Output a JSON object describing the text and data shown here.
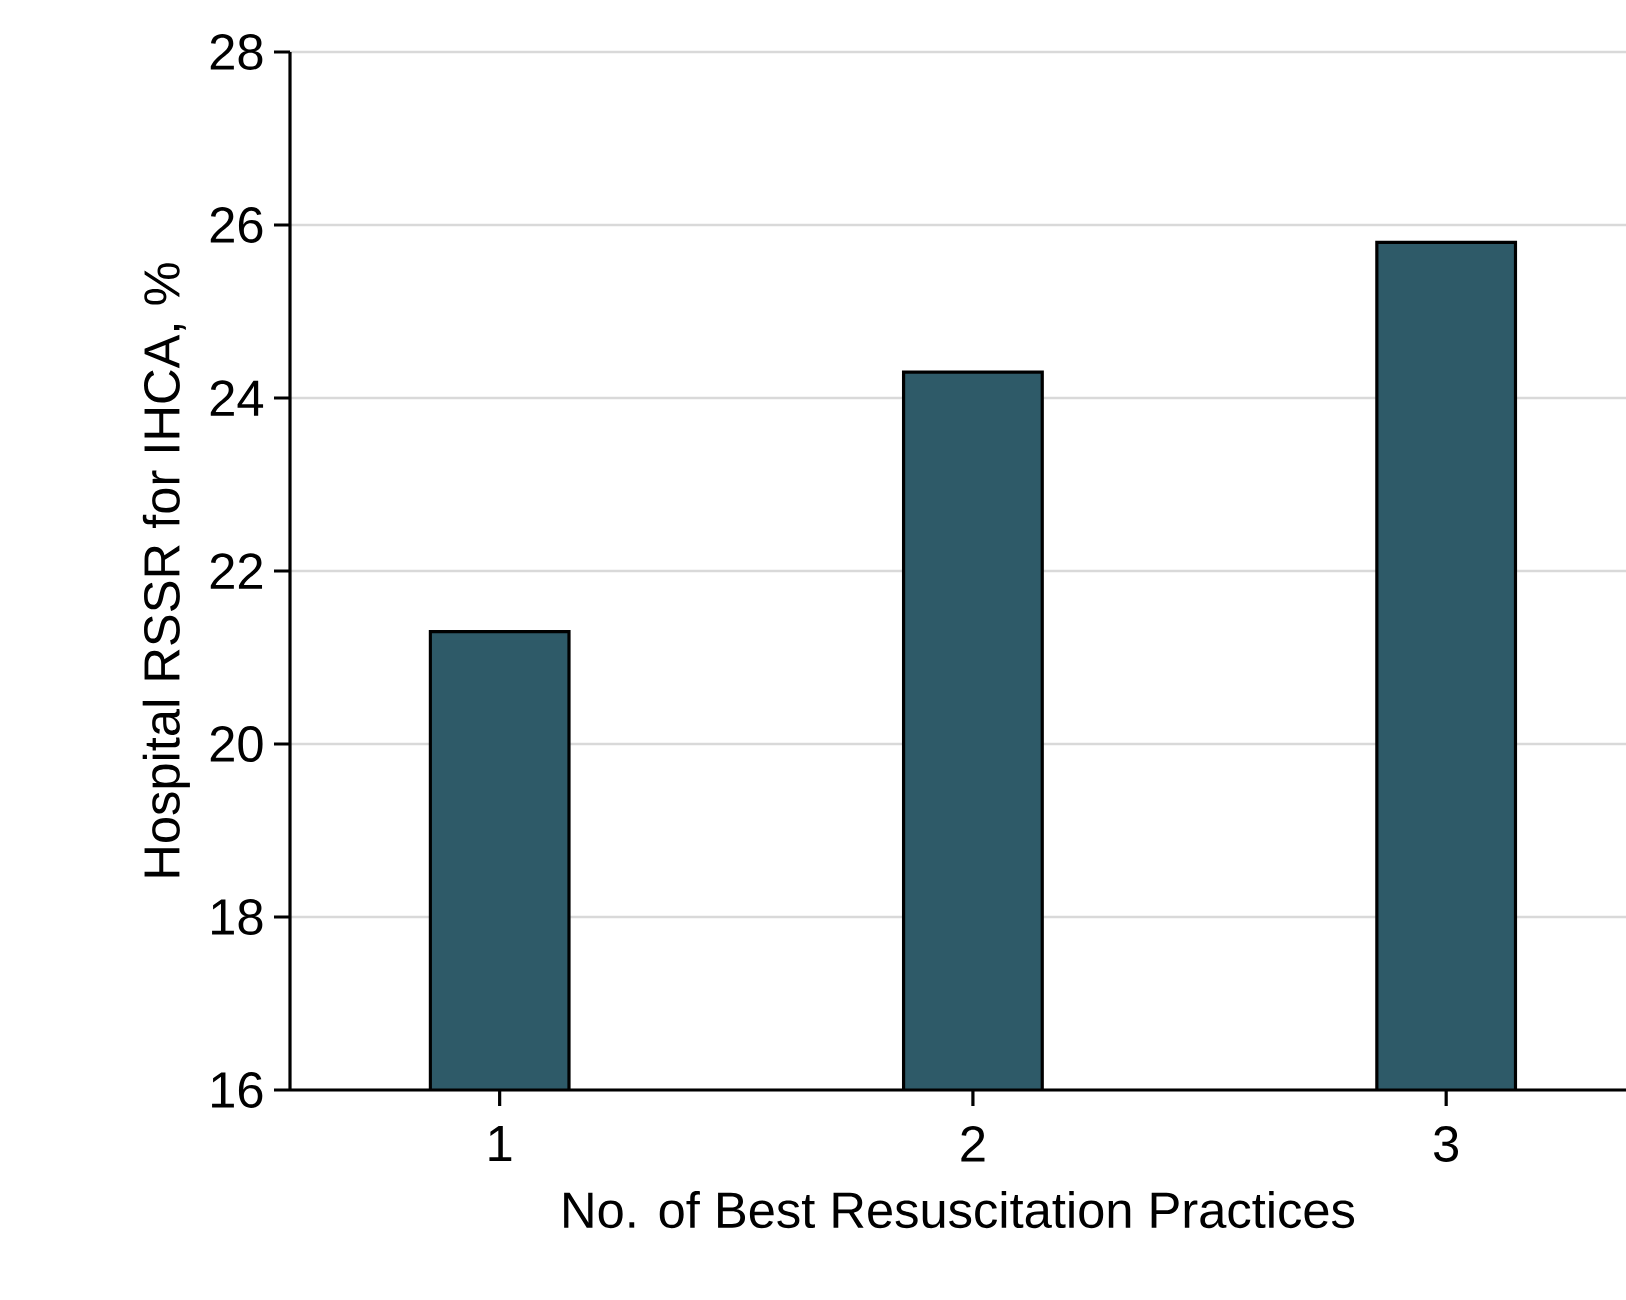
{
  "chart_data": {
    "type": "bar",
    "xlabel": "No. of Best Resuscitation Practices",
    "ylabel": "Hospital RSSR for IHCA, %",
    "categories": [
      "1",
      "2",
      "3"
    ],
    "values": [
      21.3,
      24.3,
      25.8
    ],
    "color": "#2e5a68",
    "ylim": [
      16,
      28
    ],
    "yticks": [
      16,
      18,
      20,
      22,
      24,
      26,
      28
    ],
    "grid": "y"
  }
}
